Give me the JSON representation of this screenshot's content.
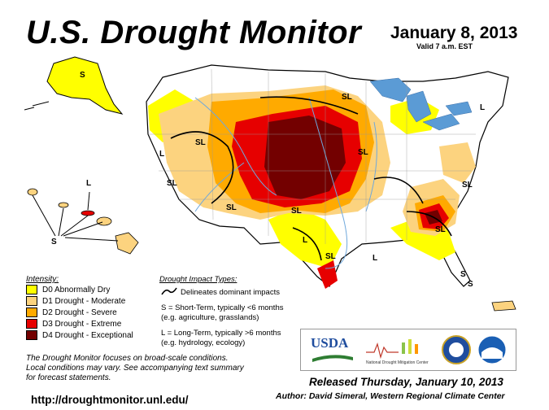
{
  "header": {
    "title": "U.S. Drought Monitor",
    "date": "January 8, 2013",
    "valid": "Valid 7 a.m. EST"
  },
  "legend": {
    "title": "Intensity:",
    "items": [
      {
        "label": "D0 Abnormally Dry",
        "color": "#ffff00"
      },
      {
        "label": "D1 Drought - Moderate",
        "color": "#fcd37f"
      },
      {
        "label": "D2 Drought - Severe",
        "color": "#ffaa00"
      },
      {
        "label": "D3 Drought - Extreme",
        "color": "#e60000"
      },
      {
        "label": "D4 Drought - Exceptional",
        "color": "#730000"
      }
    ]
  },
  "impact": {
    "title": "Drought Impact Types:",
    "delineates": "Delineates dominant impacts",
    "short_term": "S = Short-Term, typically <6 months",
    "short_term_example": "(e.g. agriculture, grasslands)",
    "long_term": "L = Long-Term, typically >6 months",
    "long_term_example": "(e.g. hydrology, ecology)"
  },
  "map_labels": {
    "sl": "SL",
    "s": "S",
    "l": "L"
  },
  "footer": {
    "focus_line1": "The Drought Monitor focuses on broad-scale conditions.",
    "focus_line2": "Local conditions may vary. See accompanying text summary",
    "focus_line3": "for forecast statements.",
    "released": "Released Thursday, January 10, 2013",
    "author": "Author: David Simeral, Western Regional Climate Center",
    "url": "http://droughtmonitor.unl.edu/"
  },
  "logos": {
    "usda": "USDA",
    "ndmc": "National Drought Mitigation Center"
  },
  "colors": {
    "water": "#6fa8dc",
    "great_lakes": "#5b9bd5",
    "line": "#000000"
  }
}
